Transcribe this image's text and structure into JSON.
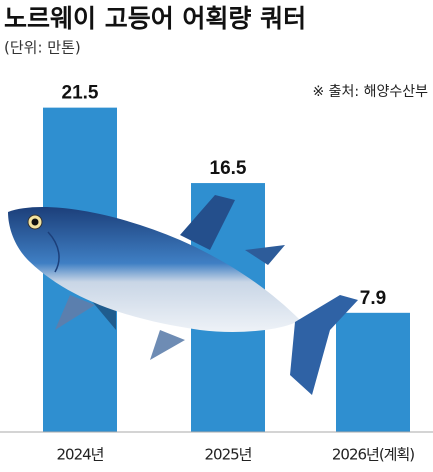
{
  "chart_data": {
    "type": "bar",
    "title": "노르웨이 고등어 어획량 쿼터",
    "subtitle": "(단위: 만톤)",
    "source": "※ 출처: 해양수산부",
    "categories": [
      "2024년",
      "2025년",
      "2026년(계획)"
    ],
    "values": [
      21.5,
      16.5,
      7.9
    ],
    "color": "#2f8fd0",
    "ylim": [
      0,
      23
    ]
  }
}
